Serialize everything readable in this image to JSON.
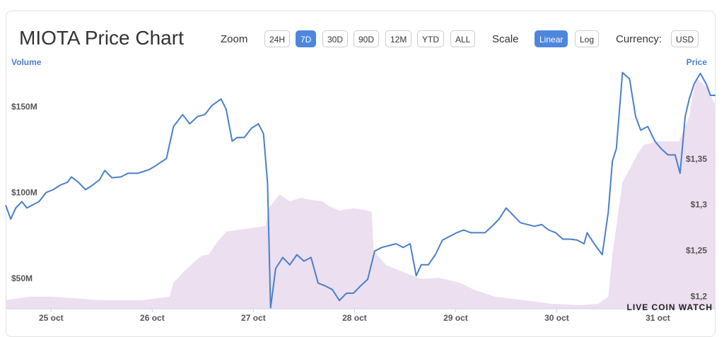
{
  "header": {
    "title": "MIOTA Price Chart",
    "zoom": {
      "label": "Zoom",
      "options": [
        {
          "text": "24H"
        },
        {
          "text": "7D",
          "active": true
        },
        {
          "text": "30D"
        },
        {
          "text": "90D"
        },
        {
          "text": "12M"
        },
        {
          "text": "YTD"
        },
        {
          "text": "ALL"
        }
      ]
    },
    "scale": {
      "label": "Scale",
      "options": [
        {
          "text": "Linear",
          "active": true
        },
        {
          "text": "Log"
        }
      ]
    },
    "currency": {
      "label": "Currency:",
      "options": [
        {
          "text": "USD"
        }
      ]
    }
  },
  "watermark": "LIVE COIN WATCH",
  "chart_data": {
    "type": "line-area",
    "xlim": [
      -0.45,
      6.57
    ],
    "xticks": [
      {
        "value": 0,
        "label": "25 oct"
      },
      {
        "value": 1,
        "label": "26 oct"
      },
      {
        "value": 2,
        "label": "27 oct"
      },
      {
        "value": 3,
        "label": "28 oct"
      },
      {
        "value": 4,
        "label": "29 oct"
      },
      {
        "value": 5,
        "label": "30 oct"
      },
      {
        "value": 6,
        "label": "31 oct"
      }
    ],
    "ylim": [
      32700000,
      171400000
    ],
    "yticks": [
      {
        "value": 50000000,
        "label": "$50M"
      },
      {
        "value": 100000000,
        "label": "$100M"
      },
      {
        "value": 150000000,
        "label": "$150M"
      }
    ],
    "y2lim": [
      1.187,
      1.447
    ],
    "y2ticks": [
      {
        "value": 1.2,
        "label": "$1,2"
      },
      {
        "value": 1.25,
        "label": "$1,25"
      },
      {
        "value": 1.3,
        "label": "$1,3"
      },
      {
        "value": 1.35,
        "label": "$1,35"
      }
    ],
    "series": [
      {
        "name": "Volume",
        "kind": "area",
        "color": "#ecdff0",
        "x": [
          -0.45,
          -0.22,
          0,
          0.2,
          0.48,
          0.9,
          1.17,
          1.21,
          1.31,
          1.42,
          1.49,
          1.56,
          1.63,
          1.73,
          1.87,
          2.01,
          2.12,
          2.15,
          2.26,
          2.36,
          2.47,
          2.57,
          2.68,
          2.75,
          2.85,
          2.99,
          3.1,
          3.17,
          3.19,
          3.31,
          3.48,
          3.66,
          3.83,
          4.04,
          4.18,
          4.39,
          4.67,
          4.95,
          5.23,
          5.41,
          5.51,
          5.55,
          5.58,
          5.65,
          5.72,
          5.79,
          5.86,
          6.0,
          6.21,
          6.31,
          6.38,
          6.49,
          6.57
        ],
        "values": [
          37700000,
          39700000,
          39700000,
          38900000,
          37700000,
          37700000,
          39700000,
          47900000,
          54100000,
          60300000,
          63600000,
          64400000,
          70600000,
          77600000,
          78800000,
          80000000,
          80900000,
          91200000,
          99400000,
          95300000,
          97300000,
          96100000,
          95300000,
          92400000,
          89900000,
          91200000,
          90300000,
          89100000,
          66500000,
          58200000,
          54100000,
          50000000,
          50800000,
          47900000,
          43800000,
          39700000,
          37700000,
          35600000,
          34800000,
          35600000,
          39700000,
          64400000,
          76700000,
          106400000,
          113800000,
          122000000,
          128200000,
          130200000,
          130200000,
          144600000,
          167300000,
          161100000,
          150800000
        ]
      },
      {
        "name": "Price",
        "kind": "line",
        "axis": "y2",
        "color": "#4a7fc9",
        "x": [
          -0.45,
          -0.4,
          -0.35,
          -0.29,
          -0.24,
          -0.19,
          -0.12,
          -0.05,
          0.02,
          0.09,
          0.16,
          0.2,
          0.27,
          0.34,
          0.41,
          0.48,
          0.53,
          0.6,
          0.69,
          0.76,
          0.86,
          0.97,
          1.03,
          1.14,
          1.21,
          1.3,
          1.37,
          1.45,
          1.52,
          1.59,
          1.68,
          1.73,
          1.79,
          1.84,
          1.91,
          1.98,
          2.05,
          2.1,
          2.14,
          2.17,
          2.22,
          2.29,
          2.36,
          2.43,
          2.5,
          2.57,
          2.64,
          2.71,
          2.78,
          2.85,
          2.92,
          2.99,
          3.06,
          3.13,
          3.2,
          3.27,
          3.34,
          3.41,
          3.48,
          3.55,
          3.61,
          3.66,
          3.73,
          3.8,
          3.87,
          3.94,
          4.01,
          4.08,
          4.15,
          4.22,
          4.29,
          4.36,
          4.43,
          4.5,
          4.57,
          4.64,
          4.71,
          4.78,
          4.85,
          4.92,
          4.99,
          5.06,
          5.13,
          5.2,
          5.27,
          5.3,
          5.37,
          5.45,
          5.51,
          5.55,
          5.59,
          5.65,
          5.72,
          5.78,
          5.83,
          5.9,
          5.97,
          6.03,
          6.1,
          6.17,
          6.22,
          6.27,
          6.31,
          6.36,
          6.42,
          6.48,
          6.52,
          6.57
        ],
        "values": [
          1.3,
          1.285,
          1.297,
          1.304,
          1.297,
          1.3,
          1.304,
          1.314,
          1.317,
          1.322,
          1.325,
          1.331,
          1.325,
          1.317,
          1.322,
          1.328,
          1.338,
          1.33,
          1.331,
          1.335,
          1.335,
          1.339,
          1.343,
          1.351,
          1.386,
          1.399,
          1.389,
          1.397,
          1.399,
          1.409,
          1.416,
          1.405,
          1.37,
          1.374,
          1.374,
          1.384,
          1.389,
          1.378,
          1.324,
          1.188,
          1.231,
          1.243,
          1.235,
          1.246,
          1.239,
          1.243,
          1.215,
          1.212,
          1.208,
          1.196,
          1.204,
          1.204,
          1.212,
          1.219,
          1.25,
          1.254,
          1.256,
          1.258,
          1.254,
          1.258,
          1.223,
          1.235,
          1.235,
          1.246,
          1.262,
          1.266,
          1.27,
          1.273,
          1.27,
          1.27,
          1.27,
          1.277,
          1.285,
          1.297,
          1.289,
          1.281,
          1.279,
          1.277,
          1.279,
          1.273,
          1.27,
          1.263,
          1.263,
          1.262,
          1.258,
          1.27,
          1.258,
          1.246,
          1.293,
          1.348,
          1.362,
          1.445,
          1.438,
          1.397,
          1.382,
          1.386,
          1.37,
          1.362,
          1.355,
          1.355,
          1.335,
          1.397,
          1.416,
          1.433,
          1.444,
          1.432,
          1.42,
          1.42
        ]
      }
    ]
  }
}
